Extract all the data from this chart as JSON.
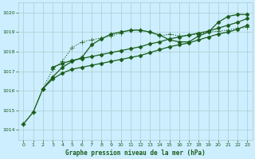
{
  "title": "Graphe pression niveau de la mer (hPa)",
  "bg_color": "#cceeff",
  "grid_color": "#aacccc",
  "line_color": "#1a5c1a",
  "xlim": [
    -0.5,
    23.5
  ],
  "ylim": [
    1013.5,
    1020.5
  ],
  "yticks": [
    1014,
    1015,
    1016,
    1017,
    1018,
    1019,
    1020
  ],
  "xticks": [
    0,
    1,
    2,
    3,
    4,
    5,
    6,
    7,
    8,
    9,
    10,
    11,
    12,
    13,
    14,
    15,
    16,
    17,
    18,
    19,
    20,
    21,
    22,
    23
  ],
  "series": [
    {
      "x": [
        0,
        1,
        2,
        3,
        4,
        5,
        6,
        7,
        8,
        9,
        10,
        11,
        12,
        13,
        14,
        15,
        16,
        17,
        18,
        19,
        20,
        21,
        22,
        23
      ],
      "y": [
        1014.3,
        1014.9,
        1016.1,
        1017.1,
        1017.5,
        1018.2,
        1018.5,
        1018.6,
        1018.7,
        1018.8,
        1018.95,
        1019.1,
        1019.1,
        1019.0,
        1018.8,
        1018.9,
        1018.8,
        1018.85,
        1018.9,
        1019.0,
        1019.05,
        1019.1,
        1019.2,
        1019.25
      ],
      "marker": "+",
      "markersize": 4,
      "linestyle": ":",
      "linewidth": 0.8
    },
    {
      "x": [
        0,
        1,
        2,
        3,
        4,
        5,
        6,
        7,
        8,
        9,
        10,
        11,
        12,
        13,
        14,
        15,
        16,
        17,
        18,
        19,
        20,
        21,
        22,
        23
      ],
      "y": [
        1014.3,
        1014.9,
        1016.1,
        1016.7,
        1017.2,
        1017.5,
        1017.7,
        1018.35,
        1018.65,
        1018.9,
        1019.0,
        1019.1,
        1019.1,
        1019.0,
        1018.85,
        1018.6,
        1018.5,
        1018.5,
        1018.8,
        1019.0,
        1019.5,
        1019.8,
        1019.9,
        1019.9
      ],
      "marker": "D",
      "markersize": 2.5,
      "linestyle": "-",
      "linewidth": 0.9
    },
    {
      "x": [
        2,
        3,
        4,
        5,
        6,
        7,
        8,
        9,
        10,
        11,
        12,
        13,
        14,
        15,
        16,
        17,
        18,
        19,
        20,
        21,
        22,
        23
      ],
      "y": [
        1016.1,
        1016.6,
        1016.9,
        1017.1,
        1017.2,
        1017.3,
        1017.4,
        1017.5,
        1017.6,
        1017.7,
        1017.8,
        1017.95,
        1018.1,
        1018.25,
        1018.35,
        1018.45,
        1018.6,
        1018.75,
        1018.9,
        1019.0,
        1019.15,
        1019.35
      ],
      "marker": "D",
      "markersize": 2.5,
      "linestyle": "-",
      "linewidth": 0.9
    },
    {
      "x": [
        3,
        4,
        5,
        6,
        7,
        8,
        9,
        10,
        11,
        12,
        13,
        14,
        15,
        16,
        17,
        18,
        19,
        20,
        21,
        22,
        23
      ],
      "y": [
        1017.2,
        1017.4,
        1017.55,
        1017.65,
        1017.75,
        1017.85,
        1017.95,
        1018.05,
        1018.15,
        1018.25,
        1018.4,
        1018.5,
        1018.65,
        1018.75,
        1018.85,
        1018.95,
        1019.05,
        1019.2,
        1019.35,
        1019.5,
        1019.7
      ],
      "marker": "D",
      "markersize": 2.5,
      "linestyle": "-",
      "linewidth": 0.9
    }
  ]
}
